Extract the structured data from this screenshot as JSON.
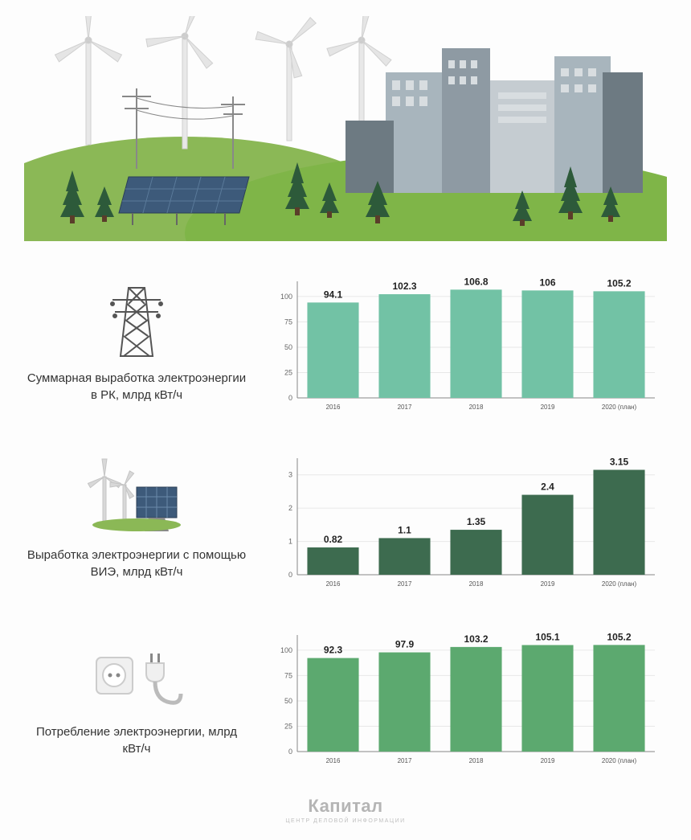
{
  "background_color": "#fdfdfd",
  "charts": [
    {
      "id": "chart1",
      "type": "bar",
      "categories": [
        "2016",
        "2017",
        "2018",
        "2019",
        "2020 (план)"
      ],
      "values": [
        94.1,
        102.3,
        106.8,
        106,
        105.2
      ],
      "value_labels": [
        "94.1",
        "102.3",
        "106.8",
        "106",
        "105.2"
      ],
      "bar_color": "#72c2a5",
      "ylim": [
        0,
        115
      ],
      "yticks": [
        0,
        25,
        50,
        75,
        100
      ],
      "ytick_labels": [
        "0",
        "25",
        "50",
        "75",
        "100"
      ],
      "grid_color": "#e8e8e8",
      "axis_color": "#888",
      "label_fontsize": 8,
      "value_fontsize": 12,
      "value_fontweight": "bold",
      "caption": "Суммарная выработка электроэнергии в РК, млрд кВт/ч",
      "icon": "pylon"
    },
    {
      "id": "chart2",
      "type": "bar",
      "categories": [
        "2016",
        "2017",
        "2018",
        "2019",
        "2020 (план)"
      ],
      "values": [
        0.82,
        1.1,
        1.35,
        2.4,
        3.15
      ],
      "value_labels": [
        "0.82",
        "1.1",
        "1.35",
        "2.4",
        "3.15"
      ],
      "bar_color": "#3d6b4f",
      "ylim": [
        0,
        3.5
      ],
      "yticks": [
        0,
        1,
        2,
        3
      ],
      "ytick_labels": [
        "0",
        "1",
        "2",
        "3"
      ],
      "grid_color": "#e8e8e8",
      "axis_color": "#888",
      "label_fontsize": 8,
      "value_fontsize": 12,
      "value_fontweight": "bold",
      "caption": "Выработка электроэнергии с помощью ВИЭ, млрд кВт/ч",
      "icon": "renewable"
    },
    {
      "id": "chart3",
      "type": "bar",
      "categories": [
        "2016",
        "2017",
        "2018",
        "2019",
        "2020 (план)"
      ],
      "values": [
        92.3,
        97.9,
        103.2,
        105.1,
        105.2
      ],
      "value_labels": [
        "92.3",
        "97.9",
        "103.2",
        "105.1",
        "105.2"
      ],
      "bar_color": "#5ca96f",
      "ylim": [
        0,
        115
      ],
      "yticks": [
        0,
        25,
        50,
        75,
        100
      ],
      "ytick_labels": [
        "0",
        "25",
        "50",
        "75",
        "100"
      ],
      "grid_color": "#e8e8e8",
      "axis_color": "#888",
      "label_fontsize": 8,
      "value_fontsize": 12,
      "value_fontweight": "bold",
      "caption": "Потребление электроэнергии, млрд кВт/ч",
      "icon": "plug"
    }
  ],
  "footer": {
    "brand": "Капитал",
    "sub": "ЦЕНТР ДЕЛОВОЙ ИНФОРМАЦИИ"
  },
  "hero": {
    "sky_color": "#ffffff",
    "hill_color": "#8bb856",
    "grass_color": "#7fb548",
    "turbine_color": "#e5e5e5",
    "building_colors": [
      "#a8b5bd",
      "#6d7a82",
      "#c5ccd1",
      "#8e9aa3"
    ],
    "tree_color": "#2d5a3a",
    "panel_color": "#3d5a7a"
  }
}
